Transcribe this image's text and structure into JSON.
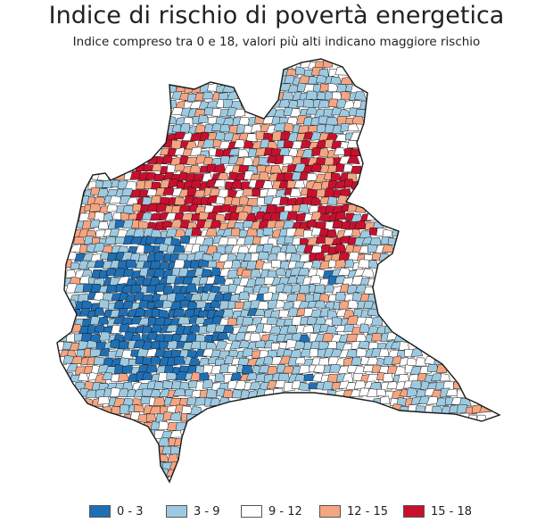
{
  "title": "Indice di rischio di povertà energetica",
  "subtitle": "Indice compreso tra 0 e 18, valori più alti indicano maggiore rischio",
  "legend": {
    "items": [
      {
        "label": "0 - 3",
        "color": "#1f6fb5"
      },
      {
        "label": "3 - 9",
        "color": "#9ecae1"
      },
      {
        "label": "9 - 12",
        "color": "#ffffff"
      },
      {
        "label": "12 - 15",
        "color": "#f4a582"
      },
      {
        "label": "15 - 18",
        "color": "#c8102e"
      }
    ]
  },
  "map": {
    "region": "Lombardia",
    "border_color": "#1a1a1a",
    "class_colors": [
      "#1f6fb5",
      "#9ecae1",
      "#ffffff",
      "#f4a582",
      "#c8102e"
    ]
  }
}
